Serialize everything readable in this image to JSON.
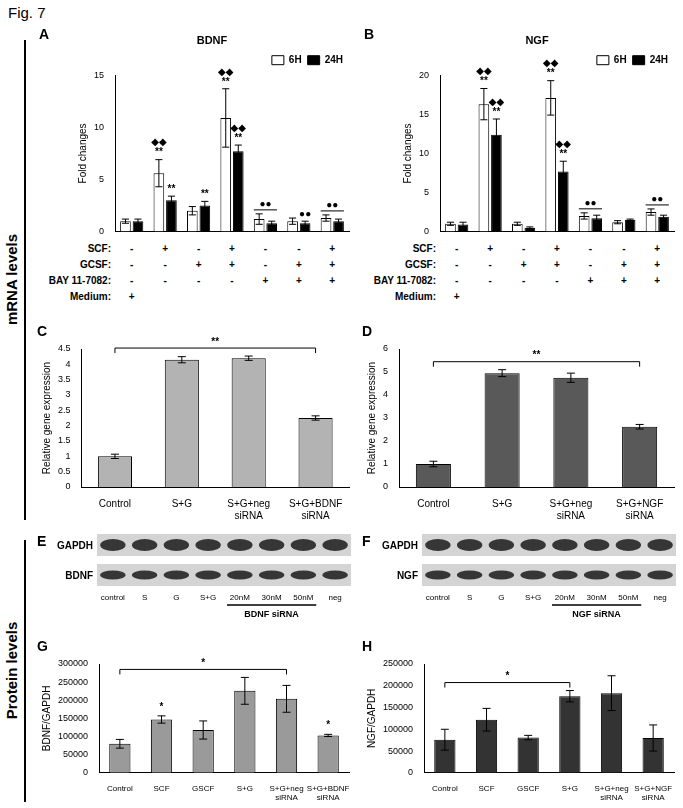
{
  "figure_title": "Fig. 7",
  "side_labels": [
    "mRNA levels",
    "Protein levels"
  ],
  "chart_data": [
    {
      "panel": "A",
      "type": "bar",
      "title": "BDNF",
      "y_label": "Fold changes",
      "categories": [
        null,
        null,
        null,
        null,
        null,
        null,
        null
      ],
      "series": [
        {
          "name": "6H",
          "color": "#ffffff",
          "values": [
            1.0,
            5.6,
            2.0,
            10.9,
            1.2,
            1.0,
            1.3
          ],
          "errors": [
            0.2,
            1.3,
            0.4,
            2.8,
            0.5,
            0.3,
            0.3
          ]
        },
        {
          "name": "24H",
          "color": "#000000",
          "values": [
            1.0,
            3.0,
            2.5,
            7.7,
            0.8,
            0.8,
            1.0
          ],
          "errors": [
            0.2,
            0.4,
            0.4,
            0.6,
            0.2,
            0.2,
            0.2
          ]
        }
      ],
      "ylim": [
        0,
        15
      ],
      "yticks": [
        0,
        5,
        10,
        15
      ],
      "grid": false,
      "legend": "top-right",
      "tick_labels": "y",
      "annotations": [
        {
          "text": "◆◆\n**",
          "series": "6H",
          "index": 1
        },
        {
          "text": "**",
          "series": "24H",
          "index": 1
        },
        {
          "text": "**",
          "series": "24H",
          "index": 2
        },
        {
          "text": "◆◆\n**",
          "series": "6H",
          "index": 3
        },
        {
          "text": "◆◆\n**",
          "series": "24H",
          "index": 3
        },
        {
          "text": "●●",
          "index": 4
        },
        {
          "text": "●●",
          "series": "24H",
          "index": 5
        },
        {
          "text": "●●",
          "index": 6
        }
      ],
      "conditions": [
        {
          "label": "SCF:",
          "marks": [
            "-",
            "+",
            "-",
            "+",
            "-",
            "-",
            "+"
          ]
        },
        {
          "label": "GCSF:",
          "marks": [
            "-",
            "-",
            "+",
            "+",
            "-",
            "+",
            "+"
          ]
        },
        {
          "label": "BAY 11-7082:",
          "marks": [
            "-",
            "-",
            "-",
            "-",
            "+",
            "+",
            "+"
          ]
        },
        {
          "label": "Medium:",
          "marks": [
            "+",
            null,
            null,
            null,
            null,
            null,
            null
          ]
        }
      ]
    },
    {
      "panel": "B",
      "type": "bar",
      "title": "NGF",
      "y_label": "Fold changes",
      "categories": [
        null,
        null,
        null,
        null,
        null,
        null,
        null
      ],
      "series": [
        {
          "name": "6H",
          "color": "#ffffff",
          "values": [
            1.0,
            16.3,
            1.0,
            17.1,
            2.0,
            1.2,
            2.5
          ],
          "errors": [
            0.2,
            2.0,
            0.2,
            2.2,
            0.4,
            0.2,
            0.4
          ]
        },
        {
          "name": "24H",
          "color": "#000000",
          "values": [
            0.9,
            12.4,
            0.5,
            7.7,
            1.7,
            1.5,
            1.9
          ],
          "errors": [
            0.3,
            2.0,
            0.1,
            1.3,
            0.4,
            0.1,
            0.2
          ]
        }
      ],
      "ylim": [
        0,
        20
      ],
      "yticks": [
        0,
        5,
        10,
        15,
        20
      ],
      "grid": false,
      "legend": "top-right",
      "tick_labels": "y",
      "annotations": [
        {
          "text": "◆◆\n**",
          "series": "6H",
          "index": 1
        },
        {
          "text": "◆◆\n**",
          "series": "24H",
          "index": 1
        },
        {
          "text": "◆◆\n**",
          "series": "6H",
          "index": 3
        },
        {
          "text": "◆◆\n**",
          "series": "24H",
          "index": 3
        },
        {
          "text": "●●",
          "index": 4
        },
        {
          "text": "●●",
          "index": 6
        }
      ],
      "conditions": [
        {
          "label": "SCF:",
          "marks": [
            "-",
            "+",
            "-",
            "+",
            "-",
            "-",
            "+"
          ]
        },
        {
          "label": "GCSF:",
          "marks": [
            "-",
            "-",
            "+",
            "+",
            "-",
            "+",
            "+"
          ]
        },
        {
          "label": "BAY 11-7082:",
          "marks": [
            "-",
            "-",
            "-",
            "-",
            "+",
            "+",
            "+"
          ]
        },
        {
          "label": "Medium:",
          "marks": [
            "+",
            null,
            null,
            null,
            null,
            null,
            null
          ]
        }
      ]
    },
    {
      "panel": "C",
      "type": "bar",
      "y_label": "Relative gene expression",
      "categories": [
        "Control",
        "S+G",
        "S+G+neg siRNA",
        "S+G+BDNF siRNA"
      ],
      "values": [
        1.0,
        4.15,
        4.2,
        2.25
      ],
      "errors": [
        0.07,
        0.1,
        0.07,
        0.07
      ],
      "color": "#b3b3b3",
      "ylim": [
        0,
        4.5
      ],
      "yticks": [
        0,
        0.5,
        1,
        1.5,
        2,
        2.5,
        3,
        3.5,
        4,
        4.5
      ],
      "grid": false,
      "annotations": [
        {
          "text": "**",
          "from": 0,
          "to": 3
        }
      ]
    },
    {
      "panel": "D",
      "type": "bar",
      "y_label": "Relative gene expression",
      "categories": [
        "Control",
        "S+G",
        "S+G+neg siRNA",
        "S+G+NGF siRNA"
      ],
      "values": [
        1.0,
        4.95,
        4.75,
        2.62
      ],
      "errors": [
        0.12,
        0.15,
        0.2,
        0.1
      ],
      "color": "#595959",
      "ylim": [
        0,
        6
      ],
      "yticks": [
        0,
        1,
        2,
        3,
        4,
        5,
        6
      ],
      "grid": false,
      "annotations": [
        {
          "text": "**",
          "from": 0,
          "to": 3
        }
      ]
    },
    {
      "panel": "G",
      "type": "bar",
      "y_label": "BDNF/GAPDH",
      "categories": [
        "Control",
        "SCF",
        "GSCF",
        "S+G",
        "S+G+neg siRNA",
        "S+G+BDNF siRNA"
      ],
      "values": [
        80000,
        147000,
        118000,
        226000,
        204000,
        103000
      ],
      "errors": [
        12000,
        10000,
        25000,
        37000,
        37000,
        3000
      ],
      "color": "#9a9a9a",
      "ylim": [
        0,
        300000
      ],
      "yticks": [
        0,
        50000,
        100000,
        150000,
        200000,
        250000,
        300000
      ],
      "grid": false,
      "annotations": [
        {
          "text": "*",
          "index": 1
        },
        {
          "text": "*",
          "from": 0,
          "to": 4
        },
        {
          "text": "*",
          "index": 5
        }
      ]
    },
    {
      "panel": "H",
      "type": "bar",
      "y_label": "NGF/GAPDH",
      "categories": [
        "Control",
        "SCF",
        "GSCF",
        "S+G",
        "S+G+neg siRNA",
        "S+G+NGF siRNA"
      ],
      "values": [
        76000,
        122000,
        81000,
        176000,
        183000,
        80000
      ],
      "errors": [
        24000,
        26000,
        5000,
        13000,
        40000,
        30000
      ],
      "color": "#333333",
      "ylim": [
        0,
        250000
      ],
      "yticks": [
        0,
        50000,
        100000,
        150000,
        200000,
        250000
      ],
      "grid": false,
      "annotations": [
        {
          "text": "*",
          "from": 0,
          "to": 3
        }
      ]
    }
  ],
  "blots": [
    {
      "panel": "E",
      "rows": [
        "GAPDH",
        "BDNF"
      ],
      "lanes": [
        "control",
        "S",
        "G",
        "S+G",
        "20nM",
        "30nM",
        "50nM",
        "neg"
      ],
      "group": {
        "label": "BDNF siRNA",
        "from": 4,
        "to": 6
      }
    },
    {
      "panel": "F",
      "rows": [
        "GAPDH",
        "NGF"
      ],
      "lanes": [
        "control",
        "S",
        "G",
        "S+G",
        "20nM",
        "30nM",
        "50nM",
        "neg"
      ],
      "group": {
        "label": "NGF siRNA",
        "from": 4,
        "to": 6
      }
    }
  ]
}
